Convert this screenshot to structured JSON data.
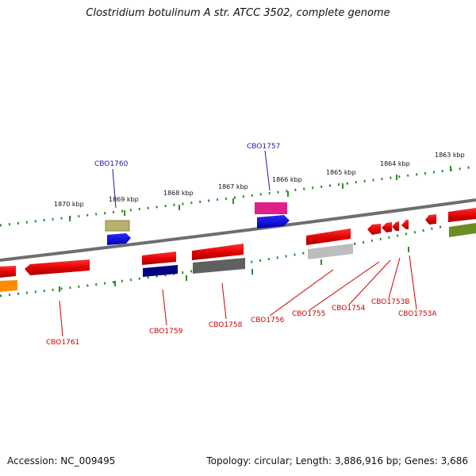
{
  "title": "Clostridium botulinum A str. ATCC 3502, complete genome",
  "footer": {
    "accession": "Accession: NC_009495",
    "topology": "Topology: circular; Length: 3,886,916 bp; Genes: 3,686"
  },
  "scale_labels": [
    "1870 kbp",
    "1869 kbp",
    "1868 kbp",
    "1867 kbp",
    "1866 kbp",
    "1865 kbp",
    "1864 kbp",
    "1863 kbp"
  ],
  "gene_labels": {
    "top": [
      "CBO1760",
      "CBO1757"
    ],
    "bottom": [
      "CBO1761",
      "CBO1759",
      "CBO1758",
      "CBO1756",
      "CBO1755",
      "CBO1754",
      "CBO1753B",
      "CBO1753A"
    ]
  },
  "colors": {
    "forward_label": "#1a1aa6",
    "reverse_label": "#cc0000",
    "backbone": "#808080",
    "tick": "#2e8b2e"
  }
}
